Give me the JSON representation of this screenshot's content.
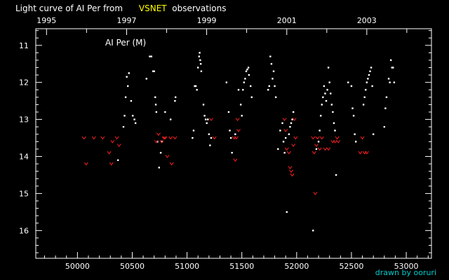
{
  "header": {
    "title_prefix": "Light curve of AI Per from",
    "title_source": "VSNET",
    "title_suffix": "observations"
  },
  "credit": "drawn by ooruri",
  "colors": {
    "background": "#000000",
    "axes": "#ffffff",
    "visual": "#ffffff",
    "fainter_than": "#ff2020",
    "title_highlight": "#ffff00",
    "credit": "#00cccc"
  },
  "chart_data": {
    "type": "scatter",
    "title": "Light curve of AI Per from VSNET observations",
    "plot_label": "AI Per (M)",
    "xlabel": "",
    "ylabel": "",
    "xlim": [
      49620,
      53230
    ],
    "ylim": [
      16.75,
      10.55
    ],
    "y_inverted": true,
    "x_ticks": [
      50000,
      50500,
      51000,
      51500,
      52000,
      52500,
      53000
    ],
    "x_tick_labels": [
      "50000",
      "50500",
      "51000",
      "51500",
      "52000",
      "52500",
      "53000"
    ],
    "y_ticks": [
      11,
      12,
      13,
      14,
      15,
      16
    ],
    "y_tick_labels": [
      "11",
      "12",
      "13",
      "14",
      "15",
      "16"
    ],
    "top_axis": {
      "years": [
        "1995",
        "1997",
        "1999",
        "2001",
        "2003"
      ],
      "year_jd": [
        49718,
        50449,
        51179,
        51910,
        52640
      ],
      "minor_jd": [
        50083,
        50814,
        51544,
        52275,
        53005
      ]
    },
    "series": [
      {
        "name": "visual",
        "marker": "dot",
        "points": [
          [
            50370,
            14.1
          ],
          [
            50420,
            13.2
          ],
          [
            50430,
            12.9
          ],
          [
            50440,
            12.4
          ],
          [
            50450,
            11.85
          ],
          [
            50460,
            12.1
          ],
          [
            50470,
            11.75
          ],
          [
            50490,
            12.5
          ],
          [
            50505,
            12.9
          ],
          [
            50520,
            13.0
          ],
          [
            50530,
            13.1
          ],
          [
            50630,
            11.9
          ],
          [
            50660,
            11.3
          ],
          [
            50675,
            11.3
          ],
          [
            50690,
            11.7
          ],
          [
            50700,
            11.7
          ],
          [
            50710,
            12.4
          ],
          [
            50715,
            12.6
          ],
          [
            50720,
            12.8
          ],
          [
            50730,
            13.6
          ],
          [
            50745,
            14.3
          ],
          [
            50760,
            13.9
          ],
          [
            50770,
            13.6
          ],
          [
            50800,
            12.8
          ],
          [
            50850,
            13.0
          ],
          [
            50890,
            12.5
          ],
          [
            50895,
            12.4
          ],
          [
            51050,
            13.5
          ],
          [
            51060,
            13.3
          ],
          [
            51070,
            12.1
          ],
          [
            51080,
            12.1
          ],
          [
            51090,
            12.2
          ],
          [
            51100,
            11.6
          ],
          [
            51110,
            11.3
          ],
          [
            51115,
            11.2
          ],
          [
            51120,
            11.4
          ],
          [
            51125,
            11.5
          ],
          [
            51130,
            11.7
          ],
          [
            51150,
            12.6
          ],
          [
            51160,
            12.9
          ],
          [
            51170,
            13.0
          ],
          [
            51180,
            13.1
          ],
          [
            51190,
            13.0
          ],
          [
            51200,
            13.4
          ],
          [
            51210,
            13.7
          ],
          [
            51220,
            13.5
          ],
          [
            51360,
            12.0
          ],
          [
            51380,
            12.8
          ],
          [
            51390,
            13.3
          ],
          [
            51400,
            13.5
          ],
          [
            51410,
            13.9
          ],
          [
            51440,
            13.4
          ],
          [
            51470,
            12.2
          ],
          [
            51490,
            12.6
          ],
          [
            51500,
            12.9
          ],
          [
            51510,
            12.2
          ],
          [
            51520,
            12.0
          ],
          [
            51530,
            11.9
          ],
          [
            51540,
            11.7
          ],
          [
            51550,
            11.65
          ],
          [
            51560,
            11.6
          ],
          [
            51565,
            11.8
          ],
          [
            51580,
            12.1
          ],
          [
            51590,
            12.4
          ],
          [
            51740,
            12.2
          ],
          [
            51750,
            12.1
          ],
          [
            51760,
            11.3
          ],
          [
            51770,
            11.5
          ],
          [
            51780,
            11.9
          ],
          [
            51790,
            11.7
          ],
          [
            51800,
            12.1
          ],
          [
            51810,
            12.4
          ],
          [
            51830,
            13.8
          ],
          [
            51850,
            13.3
          ],
          [
            51870,
            13.1
          ],
          [
            51880,
            13.6
          ],
          [
            51890,
            13.9
          ],
          [
            51900,
            13.5
          ],
          [
            51910,
            15.5
          ],
          [
            51930,
            13.4
          ],
          [
            51940,
            13.2
          ],
          [
            51950,
            13.1
          ],
          [
            51960,
            13.0
          ],
          [
            51970,
            12.8
          ],
          [
            52150,
            16.0
          ],
          [
            52180,
            13.8
          ],
          [
            52200,
            13.6
          ],
          [
            52210,
            13.3
          ],
          [
            52220,
            12.9
          ],
          [
            52230,
            12.6
          ],
          [
            52240,
            12.4
          ],
          [
            52250,
            12.1
          ],
          [
            52260,
            12.3
          ],
          [
            52270,
            12.5
          ],
          [
            52280,
            12.2
          ],
          [
            52290,
            11.6
          ],
          [
            52300,
            12.0
          ],
          [
            52310,
            12.3
          ],
          [
            52320,
            12.6
          ],
          [
            52330,
            12.8
          ],
          [
            52340,
            13.1
          ],
          [
            52350,
            13.3
          ],
          [
            52360,
            14.5
          ],
          [
            52470,
            12.0
          ],
          [
            52500,
            12.1
          ],
          [
            52510,
            12.7
          ],
          [
            52520,
            12.9
          ],
          [
            52530,
            13.4
          ],
          [
            52540,
            13.6
          ],
          [
            52610,
            12.6
          ],
          [
            52620,
            12.4
          ],
          [
            52630,
            12.2
          ],
          [
            52640,
            12.0
          ],
          [
            52650,
            11.9
          ],
          [
            52660,
            11.8
          ],
          [
            52670,
            11.7
          ],
          [
            52680,
            11.6
          ],
          [
            52690,
            12.1
          ],
          [
            52700,
            13.4
          ],
          [
            52800,
            13.2
          ],
          [
            52810,
            12.7
          ],
          [
            52820,
            12.4
          ],
          [
            52840,
            11.9
          ],
          [
            52850,
            12.0
          ],
          [
            52860,
            11.4
          ],
          [
            52870,
            11.6
          ],
          [
            52880,
            11.6
          ],
          [
            52890,
            12.0
          ]
        ]
      },
      {
        "name": "fainter-than",
        "marker": "v",
        "points": [
          [
            50060,
            13.5
          ],
          [
            50080,
            14.2
          ],
          [
            50150,
            13.5
          ],
          [
            50230,
            13.5
          ],
          [
            50290,
            13.9
          ],
          [
            50310,
            14.2
          ],
          [
            50320,
            13.6
          ],
          [
            50360,
            13.5
          ],
          [
            50380,
            13.7
          ],
          [
            50720,
            13.6
          ],
          [
            50740,
            13.4
          ],
          [
            50770,
            13.6
          ],
          [
            50790,
            13.5
          ],
          [
            50800,
            13.5
          ],
          [
            50820,
            14.0
          ],
          [
            50850,
            13.5
          ],
          [
            50860,
            14.2
          ],
          [
            50890,
            13.5
          ],
          [
            51220,
            13.0
          ],
          [
            51250,
            13.5
          ],
          [
            51430,
            13.5
          ],
          [
            51440,
            14.1
          ],
          [
            51450,
            13.5
          ],
          [
            51460,
            13.0
          ],
          [
            51470,
            13.3
          ],
          [
            51890,
            13.0
          ],
          [
            51900,
            13.3
          ],
          [
            51910,
            13.8
          ],
          [
            51930,
            13.9
          ],
          [
            51940,
            14.3
          ],
          [
            51950,
            14.4
          ],
          [
            51960,
            14.5
          ],
          [
            51970,
            13.7
          ],
          [
            51980,
            13.0
          ],
          [
            51990,
            13.5
          ],
          [
            52150,
            13.5
          ],
          [
            52160,
            13.9
          ],
          [
            52170,
            15.0
          ],
          [
            52180,
            13.7
          ],
          [
            52190,
            13.5
          ],
          [
            52210,
            13.8
          ],
          [
            52230,
            13.5
          ],
          [
            52260,
            13.8
          ],
          [
            52290,
            13.8
          ],
          [
            52330,
            13.6
          ],
          [
            52350,
            13.6
          ],
          [
            52370,
            13.5
          ],
          [
            52380,
            13.6
          ],
          [
            52580,
            13.9
          ],
          [
            52600,
            13.5
          ],
          [
            52620,
            13.9
          ],
          [
            52640,
            13.9
          ]
        ]
      }
    ]
  }
}
